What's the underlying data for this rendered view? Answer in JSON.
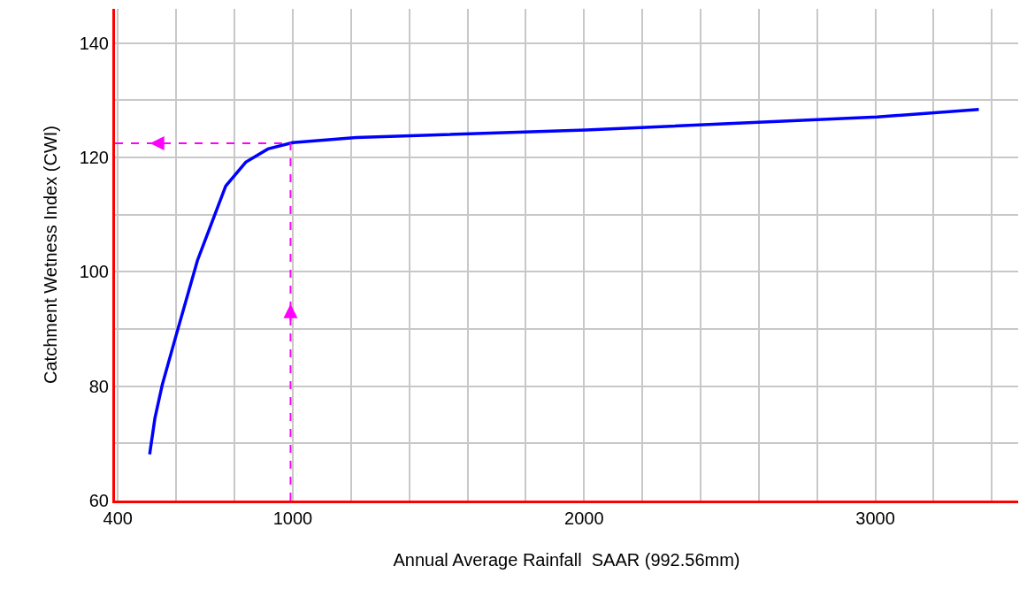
{
  "chart_data": {
    "type": "line",
    "xlabel": "Annual Average Rainfall  SAAR (992.56mm)",
    "ylabel": "Catchment Wetness Index (CWI)",
    "x": [
      509,
      527,
      552,
      597,
      673,
      770,
      839,
      915,
      1000,
      1218,
      2006,
      3006,
      3355
    ],
    "series": [
      {
        "color": "#0000ff",
        "values": [
          68.1,
          74.4,
          80.2,
          88.4,
          102,
          115,
          119.2,
          121.5,
          122.6,
          123.5,
          124.8,
          127.1,
          128.4
        ]
      }
    ],
    "xlim": [
      390,
      3490
    ],
    "ylim": [
      60,
      146
    ],
    "xticks": [
      400,
      {
        "value": 600,
        "label": null
      },
      {
        "value": 800,
        "label": null
      },
      1000,
      {
        "value": 1200,
        "label": null
      },
      {
        "value": 1400,
        "label": null
      },
      {
        "value": 1600,
        "label": null
      },
      {
        "value": 1800,
        "label": null
      },
      2000,
      {
        "value": 2200,
        "label": null
      },
      {
        "value": 2400,
        "label": null
      },
      {
        "value": 2600,
        "label": null
      },
      {
        "value": 2800,
        "label": null
      },
      3000,
      {
        "value": 3200,
        "label": null
      },
      {
        "value": 3400,
        "label": null
      }
    ],
    "yticks": [
      60,
      {
        "value": 70,
        "label": null
      },
      80,
      {
        "value": 90,
        "label": null
      },
      100,
      {
        "value": 110,
        "label": null
      },
      120,
      {
        "value": 130,
        "label": null
      },
      140
    ],
    "ref_lines": [
      {
        "axis": "x",
        "value": 992.56,
        "color": "#ff00ff",
        "line_style": "dashed"
      },
      {
        "axis": "y",
        "value": 122.5,
        "color": "#ff00ff",
        "line_style": "dashed"
      }
    ],
    "grid": true,
    "marker": "none",
    "line_style": "solid"
  }
}
